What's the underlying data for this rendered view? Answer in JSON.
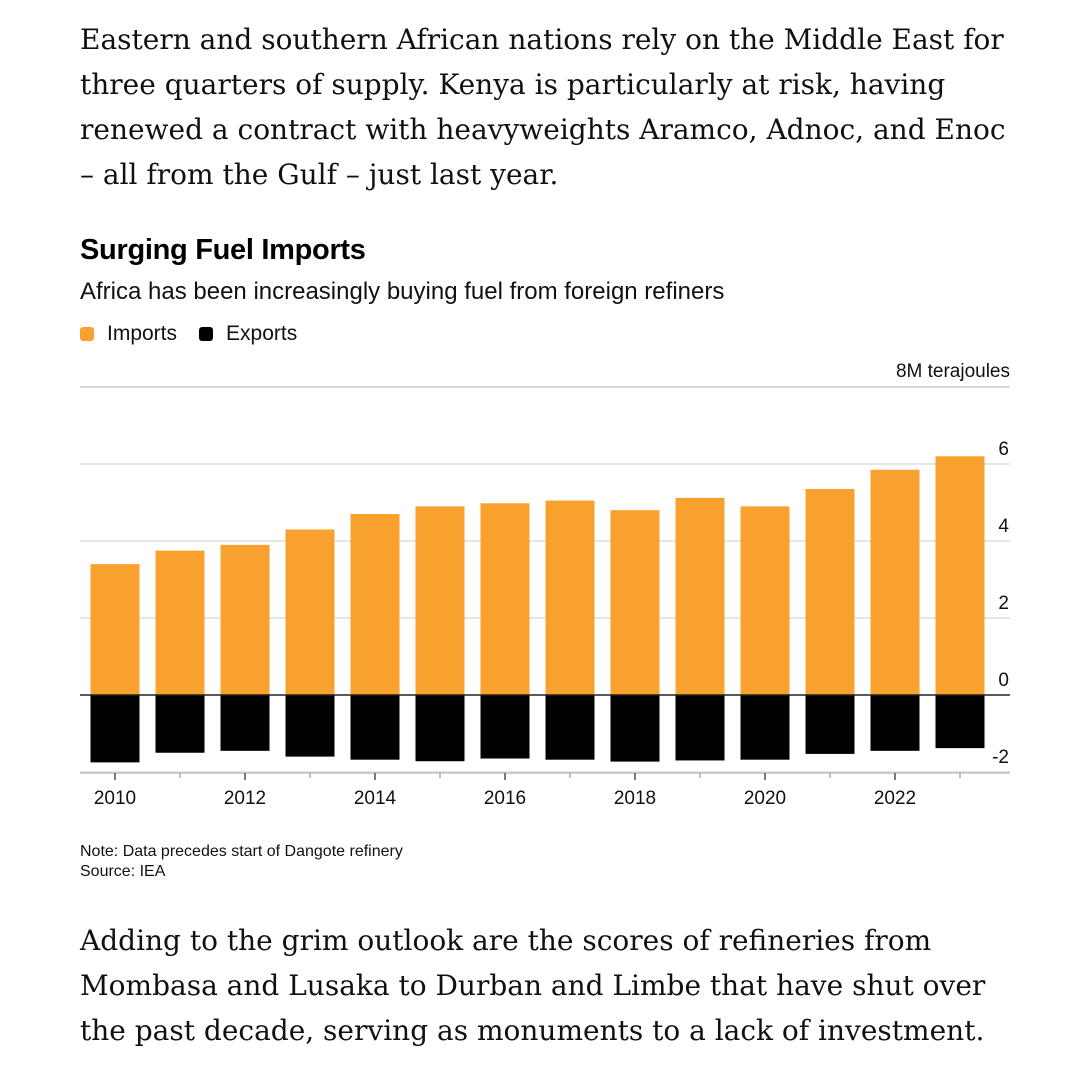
{
  "article": {
    "paragraph_1": "Eastern and southern African nations rely on the Middle East for three quarters of supply. Kenya is particularly at risk, having renewed a contract with heavyweights Aramco, Adnoc, and Enoc – all from the Gulf – just last year.",
    "paragraph_2": "Adding to the grim outlook are the scores of refineries from Mombasa and Lusaka to Durban and Limbe that have shut over the past decade, serving as monuments to a lack of investment."
  },
  "colors": {
    "imports": "#f9a12e",
    "exports": "#000000"
  },
  "chart_data": {
    "type": "bar",
    "title": "Surging Fuel Imports",
    "subtitle": "Africa has been increasingly buying fuel from foreign refiners",
    "unit_label": "8M terajoules",
    "x": [
      2010,
      2011,
      2012,
      2013,
      2014,
      2015,
      2016,
      2017,
      2018,
      2019,
      2020,
      2021,
      2022,
      2023
    ],
    "x_tick_labels": [
      "2010",
      "2012",
      "2014",
      "2016",
      "2018",
      "2020",
      "2022"
    ],
    "series": [
      {
        "name": "Imports",
        "values": [
          3.4,
          3.75,
          3.9,
          4.3,
          4.7,
          4.9,
          4.98,
          5.05,
          4.8,
          5.12,
          4.9,
          5.35,
          5.85,
          6.2
        ]
      },
      {
        "name": "Exports",
        "values": [
          -1.75,
          -1.5,
          -1.45,
          -1.6,
          -1.68,
          -1.72,
          -1.65,
          -1.68,
          -1.73,
          -1.7,
          -1.68,
          -1.53,
          -1.45,
          -1.38
        ]
      }
    ],
    "y_ticks": [
      6,
      4,
      2,
      0,
      -2
    ],
    "ylim": [
      -2,
      8
    ],
    "legend_position": "top-left",
    "grid": true,
    "note": "Note: Data precedes start of Dangote refinery",
    "source": "Source: IEA"
  }
}
